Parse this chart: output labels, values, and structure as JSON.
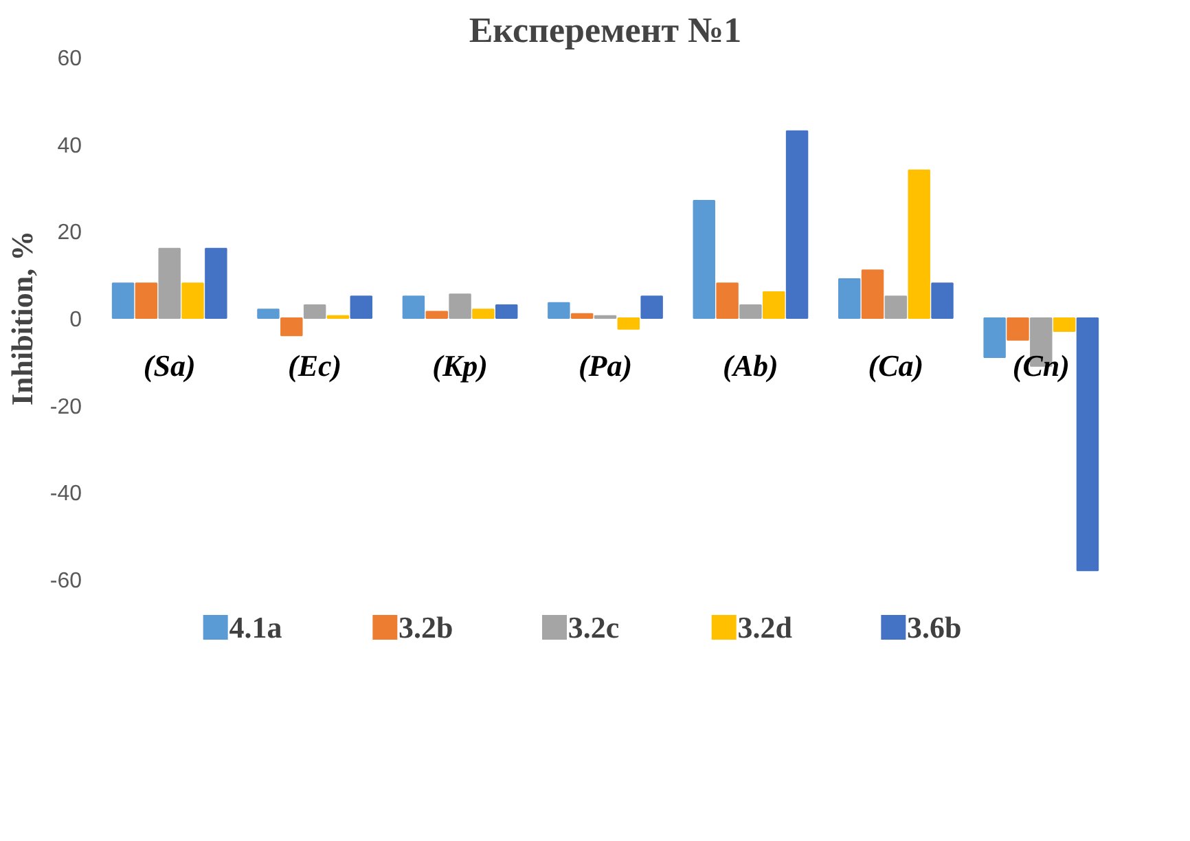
{
  "chart_data": {
    "type": "bar",
    "title": "Експеремент №1",
    "ylabel": "Inhibition, %",
    "categories": [
      "(Sa)",
      "(Ec)",
      "(Kp)",
      "(Pa)",
      "(Ab)",
      "(Ca)",
      "(Cn)"
    ],
    "series": [
      {
        "name": "4.1a",
        "color": "#5b9bd5",
        "values": [
          8,
          2,
          5,
          3.5,
          27,
          9,
          -9
        ]
      },
      {
        "name": "3.2b",
        "color": "#ed7d31",
        "values": [
          8,
          -4,
          1.5,
          1,
          8,
          11,
          -5
        ]
      },
      {
        "name": "3.2c",
        "color": "#a5a5a5",
        "values": [
          16,
          3,
          5.5,
          0.5,
          3,
          5,
          -11
        ]
      },
      {
        "name": "3.2d",
        "color": "#ffc000",
        "values": [
          8,
          0.5,
          2,
          -2.5,
          6,
          34,
          -3
        ]
      },
      {
        "name": "3.6b",
        "color": "#4472c4",
        "values": [
          16,
          5,
          3,
          5,
          43,
          8,
          -58
        ]
      }
    ],
    "ylim": [
      -60,
      60
    ],
    "yticks": [
      -60,
      -40,
      -20,
      0,
      20,
      40,
      60
    ],
    "grid": false,
    "legend": "bottom"
  }
}
